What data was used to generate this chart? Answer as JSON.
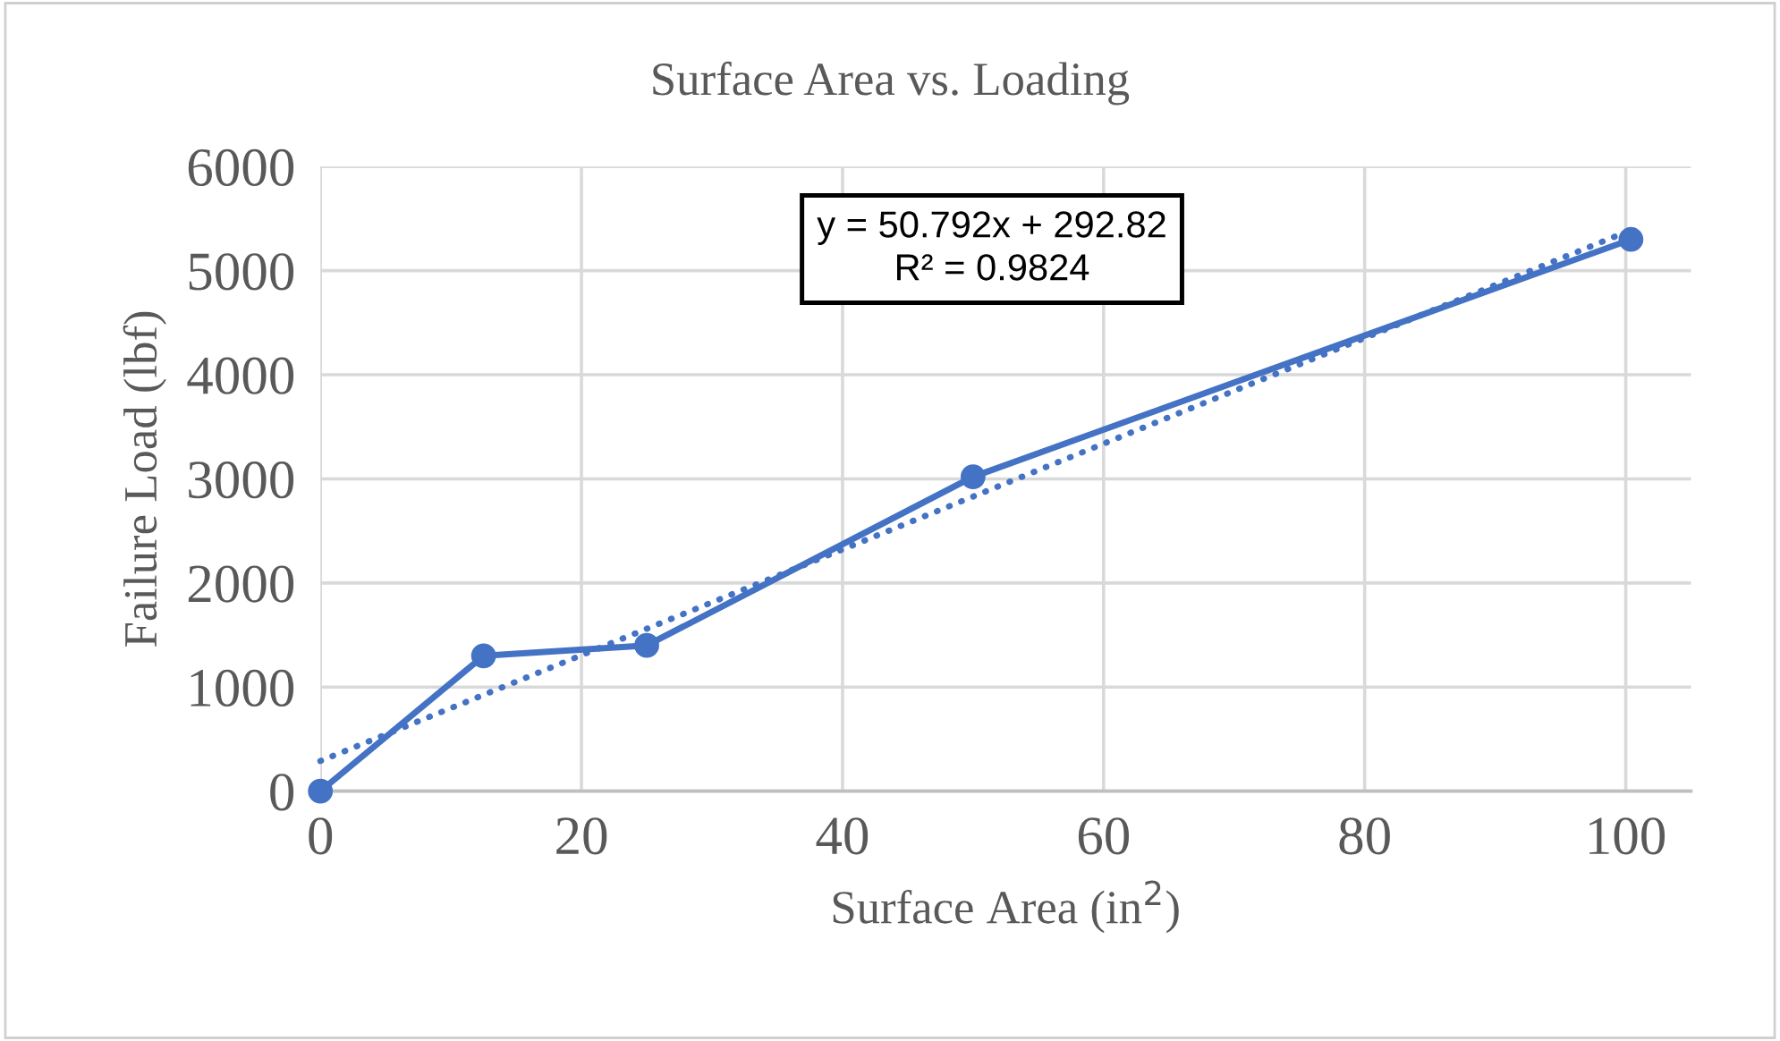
{
  "chart_data": {
    "type": "line",
    "title": "Surface Area vs. Loading",
    "xlabel": "Surface Area (in$^{2}$)",
    "ylabel": "Failure Load (lbf)",
    "series": [
      {
        "color": "#4472c4",
        "marker": "circle",
        "line_style": "solid",
        "x": [
          0,
          12.5,
          25,
          50,
          100.4
        ],
        "values": [
          0,
          1300,
          1400,
          3020,
          5300
        ]
      },
      {
        "color": "#4472c4",
        "marker": "none",
        "line_style": "dotted",
        "x": [
          0,
          100.4
        ],
        "values": [
          290,
          5390
        ]
      }
    ],
    "annotations": [
      "y = 50.792x + 292.82\nR² = 0.9824"
    ],
    "xlim": [
      0,
      105
    ],
    "xticks": [
      0,
      20,
      40,
      60,
      80,
      100
    ],
    "ylim": [
      0,
      6000
    ],
    "yticks": [
      0,
      1000,
      2000,
      3000,
      4000,
      5000,
      6000
    ],
    "grid": true,
    "legend": false
  }
}
